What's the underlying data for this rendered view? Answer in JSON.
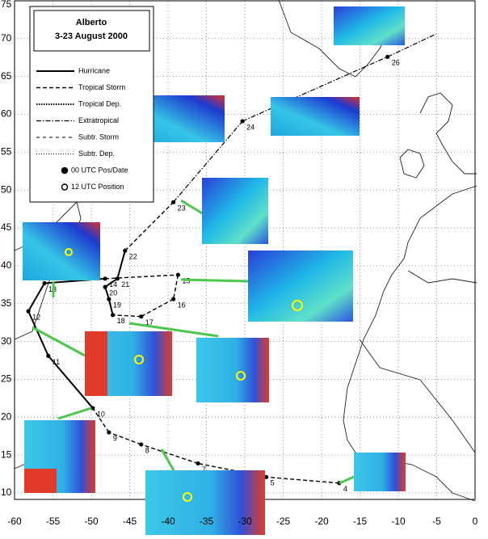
{
  "map": {
    "title": "Alberto",
    "subtitle": "3-23 August 2000",
    "legend": [
      {
        "label": "Hurricane",
        "dash": "none",
        "width": 2
      },
      {
        "label": "Tropical Storm",
        "dash": "5 3",
        "width": 1.4
      },
      {
        "label": "Tropical Dep.",
        "dash": "1.5 1.5",
        "width": 2
      },
      {
        "label": "Extratropical",
        "dash": "6 2 1.5 2",
        "width": 1.2
      },
      {
        "label": "Subtr. Storm",
        "dash": "4 4",
        "width": 0.9
      },
      {
        "label": "Subtr. Dep.",
        "dash": "1 2",
        "width": 0.9
      },
      {
        "label": "00 UTC Pos/Date",
        "marker": "filled"
      },
      {
        "label": "12 UTC Position",
        "marker": "open"
      }
    ],
    "lon_ticks": [
      -60,
      -55,
      -50,
      -45,
      -40,
      -35,
      -30,
      -25,
      -20,
      -15,
      -10,
      -5,
      0
    ],
    "lat_ticks": [
      10,
      15,
      20,
      25,
      30,
      35,
      40,
      45,
      50,
      55,
      60,
      65,
      70,
      75
    ],
    "track": [
      {
        "lon": -17.7,
        "lat": 11.3,
        "date": "4",
        "stage": 2
      },
      {
        "lon": -27.2,
        "lat": 12.1,
        "date": "5",
        "stage": 1
      },
      {
        "lon": -36.1,
        "lat": 13.9,
        "date": "7",
        "stage": 1
      },
      {
        "lon": -43.5,
        "lat": 16.4,
        "date": "8",
        "stage": 1
      },
      {
        "lon": -47.7,
        "lat": 18.0,
        "date": "9",
        "stage": 1
      },
      {
        "lon": -49.8,
        "lat": 21.2,
        "date": "10",
        "stage": 1
      },
      {
        "lon": -55.6,
        "lat": 28.1,
        "date": "11",
        "stage": 0
      },
      {
        "lon": -58.2,
        "lat": 34.0,
        "date": "12",
        "stage": 0
      },
      {
        "lon": -56.1,
        "lat": 37.7,
        "date": "13",
        "stage": 0
      },
      {
        "lon": -48.2,
        "lat": 38.3,
        "date": "14",
        "stage": 0
      },
      {
        "lon": -38.7,
        "lat": 38.8,
        "date": "15",
        "stage": 1
      },
      {
        "lon": -39.3,
        "lat": 35.6,
        "date": "16",
        "stage": 1
      },
      {
        "lon": -43.5,
        "lat": 33.3,
        "date": "17",
        "stage": 1
      },
      {
        "lon": -47.2,
        "lat": 33.5,
        "date": "18",
        "stage": 1
      },
      {
        "lon": -47.7,
        "lat": 35.6,
        "date": "19",
        "stage": 0
      },
      {
        "lon": -48.2,
        "lat": 37.2,
        "date": "20",
        "stage": 0
      },
      {
        "lon": -46.6,
        "lat": 38.3,
        "date": "21",
        "stage": 0
      },
      {
        "lon": -45.6,
        "lat": 42.0,
        "date": "22",
        "stage": 0
      },
      {
        "lon": -39.3,
        "lat": 48.4,
        "date": "23",
        "stage": 1
      },
      {
        "lon": -30.3,
        "lat": 59.1,
        "date": "24",
        "stage": 3
      },
      {
        "lon": -11.4,
        "lat": 67.6,
        "date": "26",
        "stage": 3
      },
      {
        "lon": -5.1,
        "lat": 70.6,
        "stage": 3
      }
    ]
  }
}
